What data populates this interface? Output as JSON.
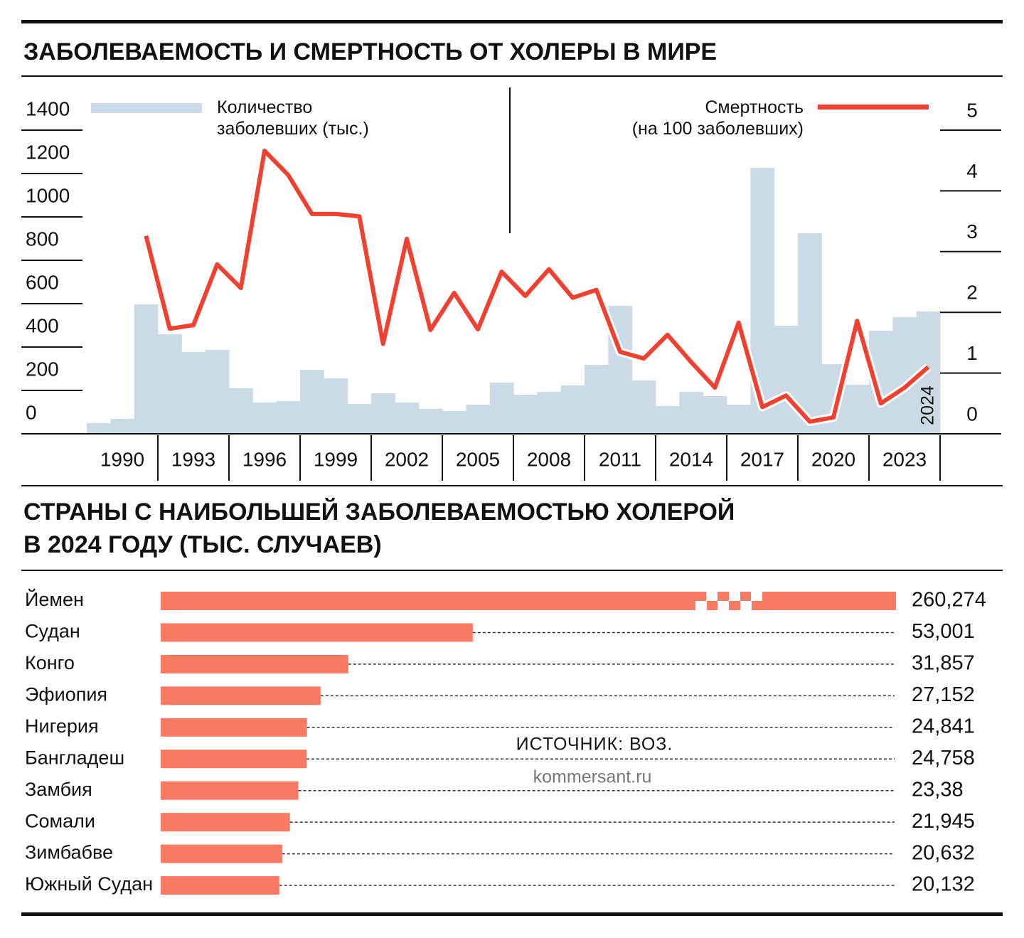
{
  "chart_data": [
    {
      "type": "bar_line",
      "title": "ЗАБОЛЕВАЕМОСТЬ И СМЕРТНОСТЬ ОТ ХОЛЕРЫ В МИРЕ",
      "x": [
        1989,
        1990,
        1991,
        1992,
        1993,
        1994,
        1995,
        1996,
        1997,
        1998,
        1999,
        2000,
        2001,
        2002,
        2003,
        2004,
        2005,
        2006,
        2007,
        2008,
        2009,
        2010,
        2011,
        2012,
        2013,
        2014,
        2015,
        2016,
        2017,
        2018,
        2019,
        2020,
        2021,
        2022,
        2023,
        2024
      ],
      "xticks": [
        1990,
        1993,
        1996,
        1999,
        2002,
        2005,
        2008,
        2011,
        2014,
        2017,
        2020,
        2023
      ],
      "annotation": "2024",
      "series": [
        {
          "name": "Количество заболевших (тыс.)",
          "color": "#cbdbe6",
          "values": [
            49,
            69,
            597,
            459,
            377,
            387,
            210,
            144,
            151,
            295,
            256,
            138,
            187,
            144,
            115,
            105,
            134,
            236,
            180,
            193,
            223,
            318,
            590,
            246,
            128,
            193,
            174,
            134,
            1226,
            498,
            925,
            321,
            226,
            475,
            538,
            564
          ]
        },
        {
          "name": "Смертность (на 100 заболевших)",
          "color": "#f0402f",
          "axis": "y2",
          "values": [
            null,
            null,
            3.26,
            1.73,
            1.79,
            2.79,
            2.4,
            4.66,
            4.26,
            3.62,
            3.62,
            3.58,
            1.48,
            3.21,
            1.71,
            2.32,
            1.72,
            2.67,
            2.27,
            2.71,
            2.24,
            2.37,
            1.35,
            1.24,
            1.63,
            1.18,
            0.76,
            1.83,
            0.44,
            0.63,
            0.2,
            0.27,
            1.86,
            0.5,
            0.76,
            1.1
          ]
        }
      ],
      "ylim": [
        0,
        1400
      ],
      "yticks": [
        0,
        200,
        400,
        600,
        800,
        1000,
        1200,
        1400
      ],
      "y2lim": [
        0,
        5
      ],
      "y2ticks": [
        0,
        1,
        2,
        3,
        4,
        5
      ]
    },
    {
      "type": "hbar",
      "title": "СТРАНЫ С НАИБОЛЬШЕЙ ЗАБОЛЕВАЕМОСТЬЮ ХОЛЕРОЙ В 2024 ГОДУ (ТЫС. СЛУЧАЕВ)",
      "categories": [
        "Йемен",
        "Судан",
        "Конго",
        "Эфиопия",
        "Нигерия",
        "Бангладеш",
        "Замбия",
        "Сомали",
        "Зимбабве",
        "Южный Судан"
      ],
      "values": [
        260.274,
        53.001,
        31.857,
        27.152,
        24.841,
        24.758,
        23.38,
        21.945,
        20.632,
        20.132
      ],
      "value_labels": [
        "260,274",
        "53,001",
        "31,857",
        "27,152",
        "24,841",
        "24,758",
        "23,38",
        "21,945",
        "20,632",
        "20,132"
      ],
      "color": "#f87a63",
      "source": "ИСТОЧНИК: ВОЗ.",
      "credit": "kommersant.ru"
    }
  ]
}
